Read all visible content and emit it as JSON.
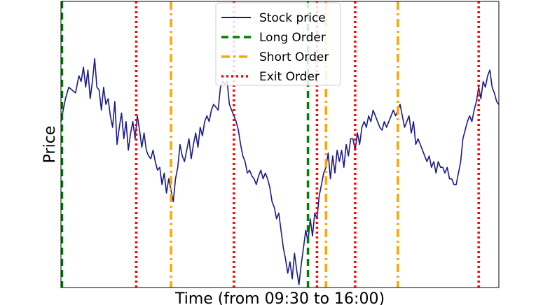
{
  "chart_data": {
    "type": "line",
    "xlabel": "Time (from 09:30 to 16:00)",
    "ylabel": "Price",
    "xlim": [
      0,
      390
    ],
    "ylim": [
      0,
      100
    ],
    "grid": false,
    "legend_position": "top-center",
    "price_series": {
      "name": "Stock price",
      "color": "#1a1a8c",
      "points": [
        [
          0,
          58
        ],
        [
          2,
          62
        ],
        [
          4,
          66
        ],
        [
          7,
          70
        ],
        [
          10,
          69
        ],
        [
          13,
          68
        ],
        [
          16,
          74
        ],
        [
          18,
          72
        ],
        [
          20,
          77
        ],
        [
          22,
          70
        ],
        [
          24,
          76
        ],
        [
          26,
          66
        ],
        [
          28,
          72
        ],
        [
          30,
          80
        ],
        [
          32,
          70
        ],
        [
          34,
          69
        ],
        [
          36,
          62
        ],
        [
          38,
          70
        ],
        [
          40,
          64
        ],
        [
          42,
          66
        ],
        [
          44,
          60
        ],
        [
          46,
          56
        ],
        [
          48,
          65
        ],
        [
          50,
          50
        ],
        [
          52,
          56
        ],
        [
          54,
          61
        ],
        [
          56,
          52
        ],
        [
          58,
          58
        ],
        [
          60,
          48
        ],
        [
          62,
          54
        ],
        [
          64,
          58
        ],
        [
          66,
          52
        ],
        [
          68,
          60
        ],
        [
          70,
          55
        ],
        [
          72,
          49
        ],
        [
          74,
          54
        ],
        [
          76,
          48
        ],
        [
          78,
          46
        ],
        [
          80,
          45
        ],
        [
          82,
          48
        ],
        [
          84,
          44
        ],
        [
          86,
          41
        ],
        [
          88,
          42
        ],
        [
          90,
          36
        ],
        [
          92,
          40
        ],
        [
          94,
          33
        ],
        [
          96,
          38
        ],
        [
          98,
          34
        ],
        [
          100,
          30
        ],
        [
          102,
          38
        ],
        [
          104,
          42
        ],
        [
          106,
          50
        ],
        [
          108,
          46
        ],
        [
          110,
          44
        ],
        [
          112,
          48
        ],
        [
          114,
          52
        ],
        [
          116,
          45
        ],
        [
          118,
          50
        ],
        [
          120,
          54
        ],
        [
          122,
          49
        ],
        [
          124,
          56
        ],
        [
          126,
          53
        ],
        [
          128,
          58
        ],
        [
          130,
          60
        ],
        [
          132,
          58
        ],
        [
          134,
          62
        ],
        [
          136,
          64
        ],
        [
          138,
          63
        ],
        [
          140,
          62
        ],
        [
          142,
          70
        ],
        [
          144,
          72
        ],
        [
          146,
          71
        ],
        [
          148,
          72
        ],
        [
          150,
          64
        ],
        [
          152,
          62
        ],
        [
          154,
          60
        ],
        [
          156,
          58
        ],
        [
          158,
          55
        ],
        [
          160,
          50
        ],
        [
          162,
          46
        ],
        [
          164,
          44
        ],
        [
          166,
          40
        ],
        [
          168,
          41
        ],
        [
          170,
          39
        ],
        [
          172,
          38
        ],
        [
          174,
          36
        ],
        [
          176,
          39
        ],
        [
          178,
          41
        ],
        [
          180,
          38
        ],
        [
          182,
          40
        ],
        [
          184,
          38
        ],
        [
          186,
          35
        ],
        [
          188,
          30
        ],
        [
          190,
          28
        ],
        [
          192,
          24
        ],
        [
          194,
          26
        ],
        [
          196,
          20
        ],
        [
          198,
          14
        ],
        [
          200,
          10
        ],
        [
          202,
          5
        ],
        [
          204,
          9
        ],
        [
          206,
          3
        ],
        [
          208,
          12
        ],
        [
          210,
          6
        ],
        [
          212,
          1
        ],
        [
          214,
          8
        ],
        [
          216,
          14
        ],
        [
          218,
          20
        ],
        [
          220,
          16
        ],
        [
          222,
          24
        ],
        [
          224,
          18
        ],
        [
          226,
          26
        ],
        [
          228,
          24
        ],
        [
          230,
          32
        ],
        [
          232,
          36
        ],
        [
          234,
          40
        ],
        [
          236,
          42
        ],
        [
          238,
          47
        ],
        [
          240,
          38
        ],
        [
          242,
          46
        ],
        [
          244,
          40
        ],
        [
          246,
          48
        ],
        [
          248,
          44
        ],
        [
          250,
          48
        ],
        [
          252,
          42
        ],
        [
          254,
          50
        ],
        [
          256,
          46
        ],
        [
          258,
          52
        ],
        [
          260,
          52
        ],
        [
          262,
          48
        ],
        [
          264,
          54
        ],
        [
          266,
          50
        ],
        [
          268,
          56
        ],
        [
          270,
          58
        ],
        [
          272,
          56
        ],
        [
          274,
          60
        ],
        [
          276,
          58
        ],
        [
          278,
          62
        ],
        [
          280,
          60
        ],
        [
          282,
          58
        ],
        [
          284,
          56
        ],
        [
          286,
          55
        ],
        [
          288,
          58
        ],
        [
          290,
          56
        ],
        [
          292,
          58
        ],
        [
          294,
          60
        ],
        [
          296,
          62
        ],
        [
          298,
          60
        ],
        [
          300,
          62
        ],
        [
          302,
          64
        ],
        [
          304,
          60
        ],
        [
          306,
          56
        ],
        [
          308,
          58
        ],
        [
          310,
          60
        ],
        [
          312,
          54
        ],
        [
          314,
          58
        ],
        [
          316,
          50
        ],
        [
          318,
          52
        ],
        [
          320,
          50
        ],
        [
          322,
          48
        ],
        [
          324,
          46
        ],
        [
          326,
          44
        ],
        [
          328,
          46
        ],
        [
          330,
          42
        ],
        [
          332,
          44
        ],
        [
          334,
          40
        ],
        [
          336,
          44
        ],
        [
          338,
          42
        ],
        [
          340,
          42
        ],
        [
          342,
          40
        ],
        [
          344,
          42
        ],
        [
          346,
          38
        ],
        [
          348,
          38
        ],
        [
          350,
          36
        ],
        [
          352,
          36
        ],
        [
          354,
          40
        ],
        [
          356,
          44
        ],
        [
          358,
          52
        ],
        [
          360,
          55
        ],
        [
          362,
          58
        ],
        [
          364,
          60
        ],
        [
          366,
          58
        ],
        [
          368,
          62
        ],
        [
          370,
          65
        ],
        [
          372,
          70
        ],
        [
          374,
          66
        ],
        [
          376,
          72
        ],
        [
          378,
          70
        ],
        [
          380,
          74
        ],
        [
          382,
          76
        ],
        [
          384,
          70
        ],
        [
          386,
          68
        ],
        [
          388,
          65
        ],
        [
          390,
          64
        ]
      ]
    },
    "orders": [
      {
        "type": "long",
        "x": 0
      },
      {
        "type": "exit",
        "x": 67
      },
      {
        "type": "short",
        "x": 98
      },
      {
        "type": "exit",
        "x": 154
      },
      {
        "type": "long",
        "x": 220
      },
      {
        "type": "exit",
        "x": 228
      },
      {
        "type": "short",
        "x": 236
      },
      {
        "type": "exit",
        "x": 262
      },
      {
        "type": "short",
        "x": 300
      },
      {
        "type": "exit",
        "x": 372
      }
    ],
    "order_styles": {
      "long": {
        "label": "Long Order",
        "color": "#008000"
      },
      "short": {
        "label": "Short Order",
        "color": "#ffa500"
      },
      "exit": {
        "label": "Exit Order",
        "color": "#ff0000"
      }
    },
    "legend": [
      "Stock price",
      "Long Order",
      "Short Order",
      "Exit Order"
    ]
  }
}
